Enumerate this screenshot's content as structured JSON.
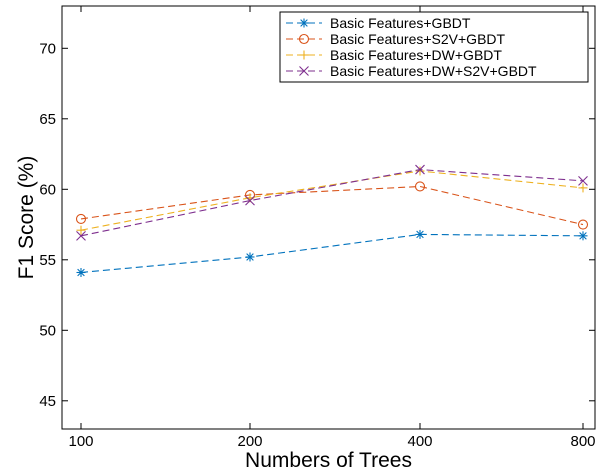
{
  "chart_data": {
    "type": "line",
    "title": "",
    "xlabel": "Numbers of Trees",
    "ylabel": "F1 Score (%)",
    "categories": [
      "100",
      "200",
      "400",
      "800"
    ],
    "ylim": [
      43,
      73
    ],
    "yticks": [
      45,
      50,
      55,
      60,
      65,
      70
    ],
    "grid": false,
    "legend_position": "top-right",
    "series": [
      {
        "name": "Basic Features+GBDT",
        "values": [
          54.1,
          55.2,
          56.8,
          56.7
        ],
        "color": "#0072BD",
        "marker": "asterisk"
      },
      {
        "name": "Basic Features+S2V+GBDT",
        "values": [
          57.9,
          59.6,
          60.2,
          57.5
        ],
        "color": "#D95319",
        "marker": "circle"
      },
      {
        "name": "Basic Features+DW+GBDT",
        "values": [
          57.1,
          59.4,
          61.3,
          60.1
        ],
        "color": "#EDB120",
        "marker": "plus"
      },
      {
        "name": "Basic Features+DW+S2V+GBDT",
        "values": [
          56.7,
          59.2,
          61.4,
          60.6
        ],
        "color": "#7E2F8E",
        "marker": "cross"
      }
    ]
  }
}
